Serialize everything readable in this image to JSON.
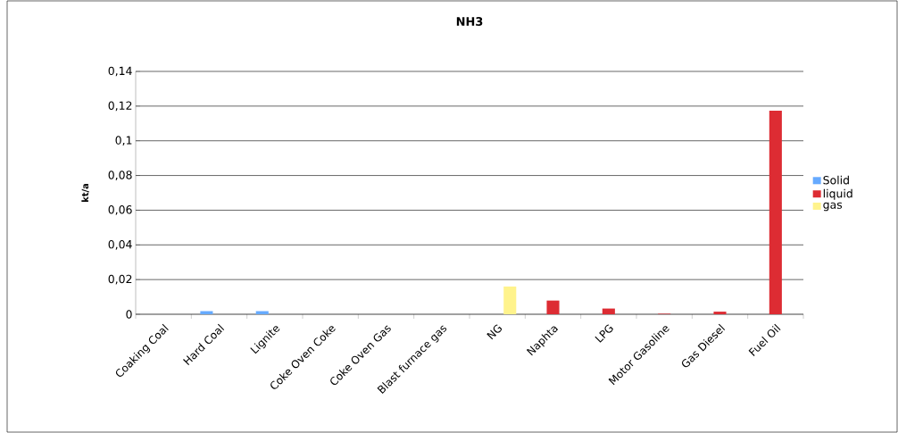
{
  "chart_data": {
    "type": "bar",
    "title": "NH3",
    "ylabel": "kt/a",
    "categories": [
      "Coaking Coal",
      "Hard Coal",
      "Lignite",
      "Coke Oven Coke",
      "Coke Oven Gas",
      "Blast furnace gas",
      "NG",
      "Naphta",
      "LPG",
      "Motor Gasoline",
      "Gas Diesel",
      "Fuel Oil"
    ],
    "series": [
      {
        "name": "Solid",
        "color": "#66aaff",
        "values": [
          null,
          0.0018,
          0.0018,
          null,
          null,
          null,
          null,
          null,
          null,
          null,
          null,
          null
        ]
      },
      {
        "name": "liquid",
        "color": "#dd2c33",
        "values": [
          null,
          null,
          null,
          null,
          null,
          null,
          null,
          0.0079,
          0.0033,
          0.0003,
          0.0015,
          0.1173
        ]
      },
      {
        "name": "gas",
        "color": "#fff38c",
        "values": [
          null,
          null,
          null,
          null,
          null,
          null,
          0.016,
          null,
          null,
          null,
          null,
          null
        ]
      }
    ],
    "ylim": [
      0,
      0.14
    ],
    "yticks": [
      0,
      {
        "value": 0.02,
        "label": "0,02"
      },
      {
        "value": 0.04,
        "label": "0,04"
      },
      {
        "value": 0.06,
        "label": "0,06"
      },
      {
        "value": 0.08,
        "label": "0,08"
      },
      {
        "value": 0.1,
        "label": "0,1"
      },
      {
        "value": 0.12,
        "label": "0,12"
      },
      {
        "value": 0.14,
        "label": "0,14"
      }
    ],
    "grid": "y",
    "legend": "right"
  }
}
